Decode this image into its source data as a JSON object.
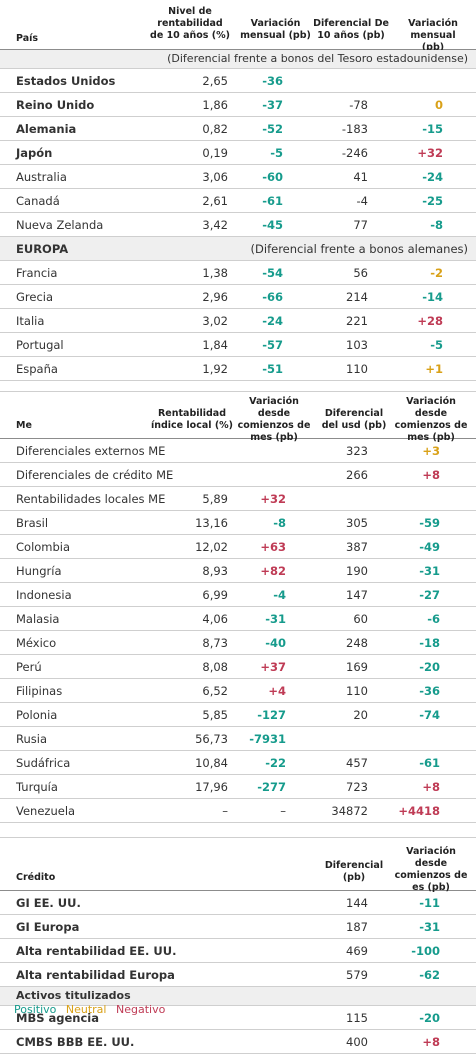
{
  "colors": {
    "positive": "#169b8c",
    "neutral": "#d9a118",
    "negative": "#bf3b55"
  },
  "gov": {
    "headers": [
      "País",
      "Nivel de rentabilidad de 10 años (%)",
      "Variación mensual (pb)",
      "Diferencial De 10 años (pb)",
      "Variación mensual (pb)"
    ],
    "note1": "(Diferencial frente a bonos del Tesoro estadounidense)",
    "rows1": [
      {
        "name": "Estados Unidos",
        "level": "2,65",
        "chg": "-36",
        "chg_s": "g",
        "spread": "",
        "schg": "",
        "schg_s": ""
      },
      {
        "name": "Reino Unido",
        "level": "1,86",
        "chg": "-37",
        "chg_s": "g",
        "spread": "-78",
        "schg": "0",
        "schg_s": "y"
      },
      {
        "name": "Alemania",
        "level": "0,82",
        "chg": "-52",
        "chg_s": "g",
        "spread": "-183",
        "schg": "-15",
        "schg_s": "g"
      },
      {
        "name": "Japón",
        "level": "0,19",
        "chg": "-5",
        "chg_s": "g",
        "spread": "-246",
        "schg": "+32",
        "schg_s": "r"
      },
      {
        "name": "Australia",
        "level": "3,06",
        "chg": "-60",
        "chg_s": "g",
        "spread": "41",
        "schg": "-24",
        "schg_s": "g"
      },
      {
        "name": "Canadá",
        "level": "2,61",
        "chg": "-61",
        "chg_s": "g",
        "spread": "-4",
        "schg": "-25",
        "schg_s": "g"
      },
      {
        "name": "Nueva Zelanda",
        "level": "3,42",
        "chg": "-45",
        "chg_s": "g",
        "spread": "77",
        "schg": "-8",
        "schg_s": "g"
      }
    ],
    "europa_label": "EUROPA",
    "note2": "(Diferencial frente a bonos alemanes)",
    "rows2": [
      {
        "name": "Francia",
        "level": "1,38",
        "chg": "-54",
        "chg_s": "g",
        "spread": "56",
        "schg": "-2",
        "schg_s": "y"
      },
      {
        "name": "Grecia",
        "level": "2,96",
        "chg": "-66",
        "chg_s": "g",
        "spread": "214",
        "schg": "-14",
        "schg_s": "g"
      },
      {
        "name": "Italia",
        "level": "3,02",
        "chg": "-24",
        "chg_s": "g",
        "spread": "221",
        "schg": "+28",
        "schg_s": "r"
      },
      {
        "name": "Portugal",
        "level": "1,84",
        "chg": "-57",
        "chg_s": "g",
        "spread": "103",
        "schg": "-5",
        "schg_s": "g"
      },
      {
        "name": "España",
        "level": "1,92",
        "chg": "-51",
        "chg_s": "g",
        "spread": "110",
        "schg": "+1",
        "schg_s": "y"
      }
    ]
  },
  "em": {
    "headers": [
      "Me",
      "Rentabilidad índice local (%)",
      "Variación desde comienzos de mes (pb)",
      "Diferencial del usd (pb)",
      "Variación desde comienzos de mes (pb)"
    ],
    "rows": [
      {
        "name": "Diferenciales externos ME",
        "level": "",
        "chg": "",
        "chg_s": "",
        "spread": "323",
        "schg": "+3",
        "schg_s": "y"
      },
      {
        "name": "Diferenciales de crédito ME",
        "level": "",
        "chg": "",
        "chg_s": "",
        "spread": "266",
        "schg": "+8",
        "schg_s": "r"
      },
      {
        "name": "Rentabilidades locales ME",
        "level": "5,89",
        "chg": "+32",
        "chg_s": "r",
        "spread": "",
        "schg": "",
        "schg_s": ""
      },
      {
        "name": "Brasil",
        "level": "13,16",
        "chg": "-8",
        "chg_s": "g",
        "spread": "305",
        "schg": "-59",
        "schg_s": "g"
      },
      {
        "name": "Colombia",
        "level": "12,02",
        "chg": "+63",
        "chg_s": "r",
        "spread": "387",
        "schg": "-49",
        "schg_s": "g"
      },
      {
        "name": "Hungría",
        "level": "8,93",
        "chg": "+82",
        "chg_s": "r",
        "spread": "190",
        "schg": "-31",
        "schg_s": "g"
      },
      {
        "name": "Indonesia",
        "level": "6,99",
        "chg": "-4",
        "chg_s": "g",
        "spread": "147",
        "schg": "-27",
        "schg_s": "g"
      },
      {
        "name": "Malasia",
        "level": "4,06",
        "chg": "-31",
        "chg_s": "g",
        "spread": "60",
        "schg": "-6",
        "schg_s": "g"
      },
      {
        "name": "México",
        "level": "8,73",
        "chg": "-40",
        "chg_s": "g",
        "spread": "248",
        "schg": "-18",
        "schg_s": "g"
      },
      {
        "name": "Perú",
        "level": "8,08",
        "chg": "+37",
        "chg_s": "r",
        "spread": "169",
        "schg": "-20",
        "schg_s": "g"
      },
      {
        "name": "Filipinas",
        "level": "6,52",
        "chg": "+4",
        "chg_s": "r",
        "spread": "110",
        "schg": "-36",
        "schg_s": "g"
      },
      {
        "name": "Polonia",
        "level": "5,85",
        "chg": "-127",
        "chg_s": "g",
        "spread": "20",
        "schg": "-74",
        "schg_s": "g"
      },
      {
        "name": "Rusia",
        "level": "56,73",
        "chg": "-7931",
        "chg_s": "g",
        "spread": "",
        "schg": "",
        "schg_s": ""
      },
      {
        "name": "Sudáfrica",
        "level": "10,84",
        "chg": "-22",
        "chg_s": "g",
        "spread": "457",
        "schg": "-61",
        "schg_s": "g"
      },
      {
        "name": "Turquía",
        "level": "17,96",
        "chg": "-277",
        "chg_s": "g",
        "spread": "723",
        "schg": "+8",
        "schg_s": "r"
      },
      {
        "name": "Venezuela",
        "level": "–",
        "chg": "–",
        "chg_s": "",
        "spread": "34872",
        "schg": "+4418",
        "schg_s": "r"
      }
    ]
  },
  "credit": {
    "headers": [
      "Crédito",
      "Diferencial (pb)",
      "Variación desde comienzos de es (pb)"
    ],
    "rows": [
      {
        "name": "GI EE. UU.",
        "spread": "144",
        "schg": "-11",
        "schg_s": "g"
      },
      {
        "name": "GI Europa",
        "spread": "187",
        "schg": "-31",
        "schg_s": "g"
      },
      {
        "name": "Alta rentabilidad EE. UU.",
        "spread": "469",
        "schg": "-100",
        "schg_s": "g"
      },
      {
        "name": "Alta rentabilidad Europa",
        "spread": "579",
        "schg": "-62",
        "schg_s": "g"
      }
    ],
    "sec_label": "Activos titulizados",
    "rows2": [
      {
        "name": "MBS agencia",
        "spread": "115",
        "schg": "-20",
        "schg_s": "g"
      },
      {
        "name": "CMBS BBB EE. UU.",
        "spread": "400",
        "schg": "+8",
        "schg_s": "r"
      }
    ]
  },
  "legend": {
    "positive": "Positivo",
    "neutral": "Neutral",
    "negative": "Negativo"
  }
}
